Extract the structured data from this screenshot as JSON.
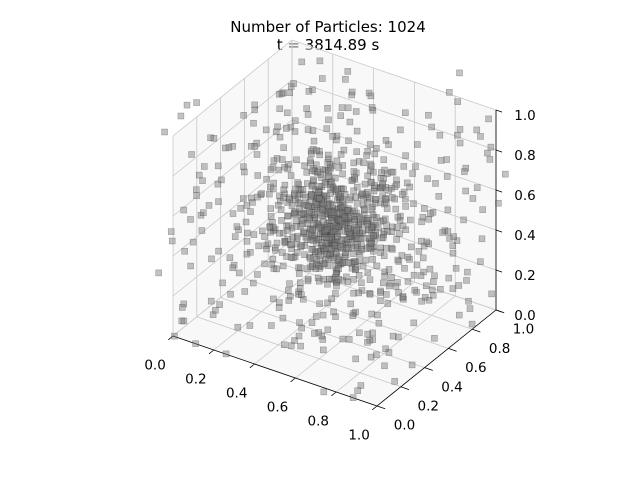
{
  "chart_data": {
    "type": "scatter",
    "projection": "3d",
    "title_line1": "Number of Particles: 1024",
    "title_line2": "t = 3814.89 s",
    "particle_count": 1024,
    "time": "3814.89 s",
    "xlim": [
      0,
      1
    ],
    "ylim": [
      0,
      1
    ],
    "zlim": [
      0,
      1
    ],
    "x_ticks": [
      "0.0",
      "0.2",
      "0.4",
      "0.6",
      "0.8",
      "1.0"
    ],
    "y_ticks": [
      "0.0",
      "0.2",
      "0.4",
      "0.6",
      "0.8",
      "1.0"
    ],
    "z_ticks": [
      "0.0",
      "0.2",
      "0.4",
      "0.6",
      "0.8",
      "1.0"
    ],
    "grid": true,
    "marker": "square",
    "marker_color": "#808080",
    "distribution": "dense cluster near center (0.5, 0.5, 0.5) surrounded by sparse uniformly scattered particles, some outside the unit box"
  }
}
